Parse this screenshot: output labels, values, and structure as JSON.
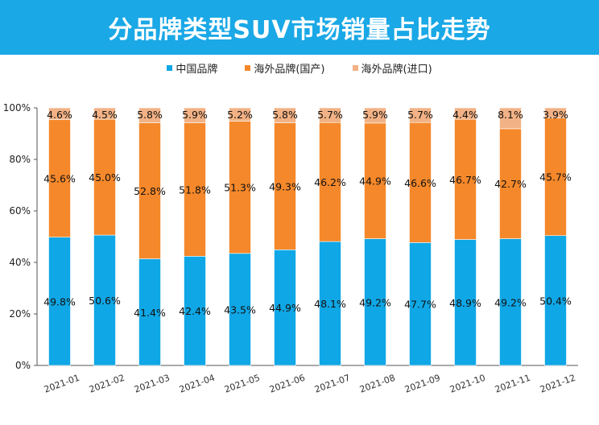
{
  "chart_data": {
    "type": "bar",
    "stacked": true,
    "title": "分品牌类型SUV市场销量占比走势",
    "categories": [
      "2021-01",
      "2021-02",
      "2021-03",
      "2021-04",
      "2021-05",
      "2021-06",
      "2021-07",
      "2021-08",
      "2021-09",
      "2021-10",
      "2021-11",
      "2021-12"
    ],
    "series": [
      {
        "name": "中国品牌",
        "color": "#0fa7e6",
        "values": [
          49.8,
          50.6,
          41.4,
          42.4,
          43.5,
          44.9,
          48.1,
          49.2,
          47.7,
          48.9,
          49.2,
          50.4
        ],
        "labels": [
          "49.8%",
          "50.6%",
          "41.4%",
          "42.4%",
          "43.5%",
          "44.9%",
          "48.1%",
          "49.2%",
          "47.7%",
          "48.9%",
          "49.2%",
          "50.4%"
        ]
      },
      {
        "name": "海外品牌(国产)",
        "color": "#f5882a",
        "values": [
          45.6,
          45.0,
          52.8,
          51.8,
          51.3,
          49.3,
          46.2,
          44.9,
          46.6,
          46.7,
          42.7,
          45.7
        ],
        "labels": [
          "45.6%",
          "45.0%",
          "52.8%",
          "51.8%",
          "51.3%",
          "49.3%",
          "46.2%",
          "44.9%",
          "46.6%",
          "46.7%",
          "42.7%",
          "45.7%"
        ]
      },
      {
        "name": "海外品牌(进口)",
        "color": "#f2b285",
        "values": [
          4.6,
          4.5,
          5.8,
          5.9,
          5.2,
          5.8,
          5.7,
          5.9,
          5.7,
          4.4,
          8.1,
          3.9
        ],
        "labels": [
          "4.6%",
          "4.5%",
          "5.8%",
          "5.9%",
          "5.2%",
          "5.8%",
          "5.7%",
          "5.9%",
          "5.7%",
          "4.4%",
          "8.1%",
          "3.9%"
        ]
      }
    ],
    "ylim": [
      0,
      100
    ],
    "yticks": [
      0,
      20,
      40,
      60,
      80,
      100
    ],
    "ytick_labels": [
      "0%",
      "20%",
      "40%",
      "60%",
      "80%",
      "100%"
    ],
    "xlabel": "",
    "ylabel": "",
    "legend_position": "top-center",
    "grid": false
  }
}
